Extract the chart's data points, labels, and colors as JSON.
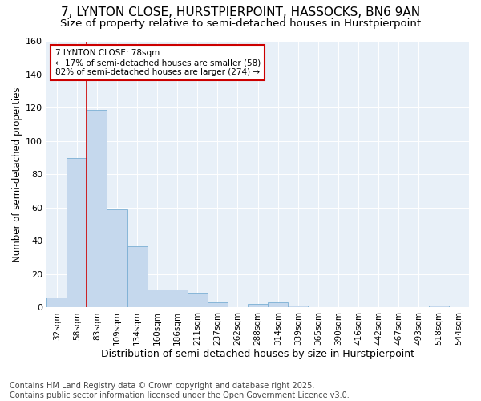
{
  "title": "7, LYNTON CLOSE, HURSTPIERPOINT, HASSOCKS, BN6 9AN",
  "subtitle": "Size of property relative to semi-detached houses in Hurstpierpoint",
  "xlabel": "Distribution of semi-detached houses by size in Hurstpierpoint",
  "ylabel": "Number of semi-detached properties",
  "categories": [
    "32sqm",
    "58sqm",
    "83sqm",
    "109sqm",
    "134sqm",
    "160sqm",
    "186sqm",
    "211sqm",
    "237sqm",
    "262sqm",
    "288sqm",
    "314sqm",
    "339sqm",
    "365sqm",
    "390sqm",
    "416sqm",
    "442sqm",
    "467sqm",
    "493sqm",
    "518sqm",
    "544sqm"
  ],
  "values": [
    6,
    90,
    119,
    59,
    37,
    11,
    11,
    9,
    3,
    0,
    2,
    3,
    1,
    0,
    0,
    0,
    0,
    0,
    0,
    1,
    0
  ],
  "bar_color": "#c5d8ed",
  "bar_edge_color": "#7bafd4",
  "vline_color": "#cc0000",
  "vline_x": 1.5,
  "annotation_title": "7 LYNTON CLOSE: 78sqm",
  "annotation_line1": "← 17% of semi-detached houses are smaller (58)",
  "annotation_line2": "82% of semi-detached houses are larger (274) →",
  "annotation_box_color": "#cc0000",
  "ylim": [
    0,
    160
  ],
  "yticks": [
    0,
    20,
    40,
    60,
    80,
    100,
    120,
    140,
    160
  ],
  "background_color": "#e8f0f8",
  "footer": "Contains HM Land Registry data © Crown copyright and database right 2025.\nContains public sector information licensed under the Open Government Licence v3.0.",
  "title_fontsize": 11,
  "subtitle_fontsize": 9.5,
  "xlabel_fontsize": 9,
  "ylabel_fontsize": 8.5,
  "tick_fontsize": 8,
  "footer_fontsize": 7
}
